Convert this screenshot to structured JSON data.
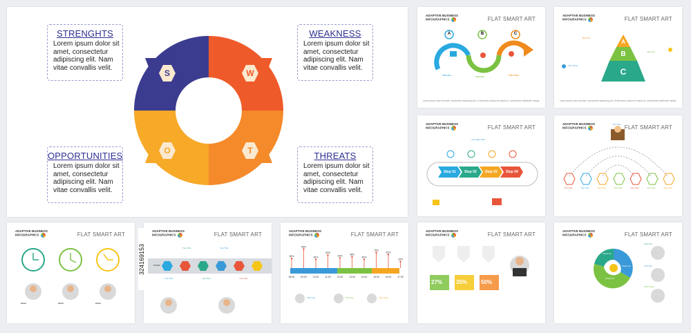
{
  "main": {
    "strengths": {
      "title": "STRENGHTS",
      "body": "Lorem ipsum dolor sit amet, consectetur adipiscing elit. Nam vitae convallis velit."
    },
    "weakness": {
      "title": "WEAKNESS",
      "body": "Lorem ipsum dolor sit amet, consectetur adipiscing elit. Nam vitae convallis velit."
    },
    "opportunities": {
      "title": "OPPORTUNITIES",
      "body": "Lorem ipsum dolor sit amet, consectetur adipiscing elit. Nam vitae convallis velit."
    },
    "threats": {
      "title": "THREATS",
      "body": "Lorem ipsum dolor sit amet, consectetur adipiscing elit. Nam vitae convallis velit."
    },
    "letters": {
      "s": "S",
      "w": "W",
      "o": "O",
      "t": "T"
    },
    "colors": {
      "s": "#3b3b8f",
      "w": "#ef5a2a",
      "o": "#f7a928",
      "t": "#f58a2b"
    }
  },
  "common": {
    "brand_line1": "ADAPTIVE BUSINESS",
    "brand_line2": "INFOGRAPHICS",
    "flat": "FLAT SMART ART",
    "foot": "Lorem ipsum dolor sit amet, consectetur adipiscing elit. Ut elit lectus, dictum id mauris ut, consectetur sollicitudin massa."
  },
  "abc": {
    "a": "A",
    "b": "B",
    "c": "C",
    "t1": "Title One",
    "t2": "Title Two",
    "t3": "Title Three"
  },
  "pyramid": {
    "a": "A",
    "b": "B",
    "c": "C",
    "t1": "Title One",
    "t2": "Title Two",
    "t3": "Title Three"
  },
  "steps": {
    "main": "Your Main Title",
    "s1": "Step 01",
    "s2": "Step 02",
    "s3": "Step 03",
    "s4": "Step 04"
  },
  "tree": {
    "title": "Your Title",
    "items": [
      "Your Title",
      "Your Title",
      "Your Title",
      "Your Title",
      "Your Title",
      "Your Title",
      "Your Title"
    ]
  },
  "clocks": {
    "c1": "Chart",
    "c2": "Chart",
    "c3": "Chart"
  },
  "hexrow": {
    "start": "START",
    "top1": "Your Title",
    "top2": "Your Title",
    "b1": "Your Title",
    "b2": "Your Title",
    "b3": "Your Title"
  },
  "timeline": {
    "times": [
      "08:00",
      "09:00",
      "10:00",
      "11:00",
      "12:00",
      "13:00",
      "14:00",
      "15:00",
      "16:00",
      "17:00"
    ],
    "pct": [
      "36%",
      "98%",
      "30%",
      "59%",
      "39%",
      "48%",
      "30%",
      "75%",
      "62%",
      "15%"
    ],
    "names": [
      "Title One",
      "Title Two",
      "Title Three"
    ]
  },
  "percent": {
    "p1": "27%",
    "p2": "35%",
    "p3": "50%"
  },
  "cycle": {
    "t1": "Title One",
    "t2": "Title Two",
    "t3": "Title Three",
    "ph1": "Phase 01",
    "ph2": "Phase 02",
    "ph3": "Phase 03"
  },
  "stock": {
    "id": "324169153"
  }
}
